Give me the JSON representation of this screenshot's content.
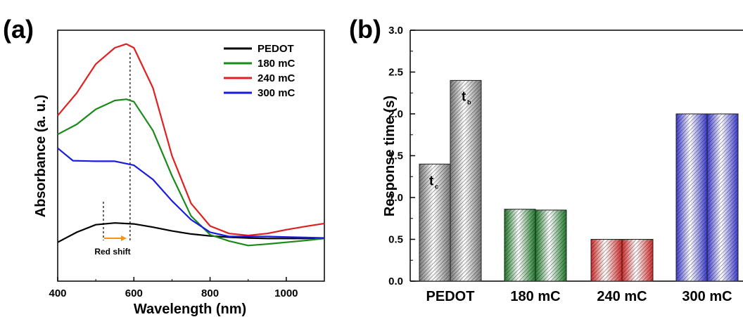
{
  "chart_data": [
    {
      "panel": "(a)",
      "type": "line",
      "xlabel": "Wavelength (nm)",
      "ylabel": "Absorbance (a. u.)",
      "xlim": [
        400,
        1100
      ],
      "ylim": [
        0,
        1
      ],
      "xticks": [
        400,
        600,
        800,
        1000
      ],
      "legend_position": "top-right",
      "series": [
        {
          "name": "PEDOT",
          "color": "#000000",
          "x": [
            400,
            450,
            500,
            550,
            600,
            650,
            700,
            750,
            800,
            850,
            900,
            950,
            1000,
            1050,
            1100
          ],
          "y": [
            0.155,
            0.195,
            0.225,
            0.232,
            0.228,
            0.215,
            0.2,
            0.188,
            0.18,
            0.175,
            0.172,
            0.17,
            0.17,
            0.17,
            0.172
          ]
        },
        {
          "name": "180 mC",
          "color": "#1a8a1a",
          "x": [
            400,
            450,
            500,
            550,
            580,
            600,
            650,
            700,
            750,
            800,
            850,
            900,
            950,
            1000,
            1050,
            1100
          ],
          "y": [
            0.585,
            0.625,
            0.685,
            0.72,
            0.725,
            0.715,
            0.6,
            0.42,
            0.26,
            0.185,
            0.16,
            0.142,
            0.148,
            0.155,
            0.162,
            0.17
          ]
        },
        {
          "name": "240 mC",
          "color": "#e02020",
          "x": [
            400,
            450,
            500,
            550,
            580,
            600,
            650,
            700,
            750,
            800,
            850,
            900,
            950,
            1000,
            1050,
            1100
          ],
          "y": [
            0.66,
            0.75,
            0.865,
            0.93,
            0.945,
            0.93,
            0.77,
            0.5,
            0.31,
            0.22,
            0.19,
            0.182,
            0.19,
            0.205,
            0.218,
            0.23
          ]
        },
        {
          "name": "300 mC",
          "color": "#1a1ae0",
          "x": [
            400,
            420,
            440,
            500,
            550,
            600,
            650,
            700,
            750,
            800,
            850,
            900,
            950,
            1000,
            1050,
            1100
          ],
          "y": [
            0.53,
            0.505,
            0.48,
            0.478,
            0.478,
            0.462,
            0.405,
            0.32,
            0.245,
            0.195,
            0.178,
            0.178,
            0.178,
            0.176,
            0.174,
            0.172
          ]
        }
      ],
      "annotations": [
        {
          "text": "Red shift",
          "x": 555,
          "y": 0.13
        }
      ],
      "reference_lines_x": [
        520,
        590
      ]
    },
    {
      "panel": "(b)",
      "type": "bar",
      "ylabel": "Response time (s)",
      "ylim": [
        0,
        3.0
      ],
      "yticks": [
        "0.0",
        "0.5",
        "1.0",
        "1.5",
        "2.0",
        "2.5",
        "3.0"
      ],
      "categories": [
        "PEDOT",
        "180 mC",
        "240 mC",
        "300 mC"
      ],
      "colors": [
        "#7a7a7a",
        "#1f7a2a",
        "#d42a2a",
        "#3a3ad0"
      ],
      "series": [
        {
          "name": "t_c",
          "values": [
            1.4,
            0.86,
            0.5,
            2.0
          ]
        },
        {
          "name": "t_b",
          "values": [
            2.4,
            0.85,
            0.5,
            2.0
          ]
        }
      ],
      "bar_annotations": [
        {
          "main": "t",
          "sub": "c"
        },
        {
          "main": "t",
          "sub": "b"
        }
      ]
    }
  ]
}
